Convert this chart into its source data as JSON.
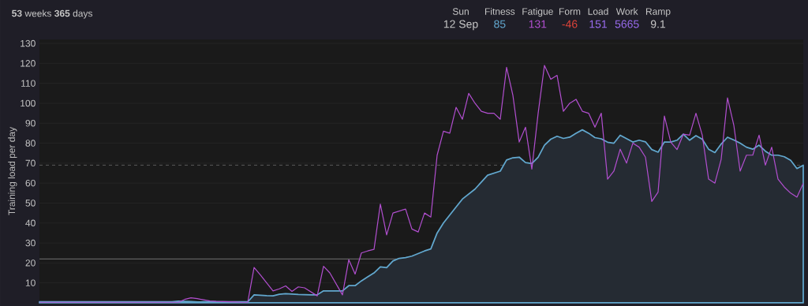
{
  "chart_data": {
    "type": "line",
    "annotations": [
      "**53** weeks **365** days",
      "Sun",
      "12 Sep",
      "Fitness",
      "85",
      "Fatigue",
      "131",
      "Form",
      "-46",
      "Load",
      "151",
      "Work",
      "5665",
      "Ramp",
      "9.1"
    ],
    "ylabel": "Training load per day",
    "categories": [
      null,
      null,
      null,
      null,
      null,
      null,
      null,
      null,
      null,
      null,
      null,
      null,
      null,
      null,
      null,
      null,
      null,
      null,
      null,
      null,
      null,
      null,
      null,
      null,
      null,
      null,
      null,
      null,
      null,
      null,
      null,
      null,
      null,
      null,
      null,
      null,
      null,
      null,
      null,
      null,
      null,
      null,
      null,
      null,
      null,
      null,
      null,
      null,
      null,
      null,
      null,
      null,
      null,
      null,
      null,
      null,
      null,
      null,
      null,
      null,
      null,
      null,
      null,
      null,
      null,
      null,
      null,
      null,
      null,
      null,
      null,
      null,
      null,
      null,
      null,
      null,
      null,
      null,
      null,
      null,
      null,
      null,
      null,
      null,
      null,
      null,
      null,
      null,
      null,
      null,
      null,
      null,
      null,
      null,
      null,
      null,
      null,
      null,
      null,
      null,
      null,
      null,
      null,
      null,
      null,
      null,
      null,
      null,
      null,
      null,
      null,
      null,
      null,
      null,
      null,
      null,
      null,
      null,
      null,
      null,
      null,
      null
    ],
    "ylim": [
      0,
      132
    ],
    "yticks": [
      10,
      20,
      30,
      40,
      50,
      60,
      70,
      80,
      90,
      100,
      110,
      120,
      130
    ],
    "grid": "y",
    "ref_lines": [
      {
        "axis": "y",
        "value": 69,
        "color": "#6a6a6a",
        "line_style": "dashed"
      },
      {
        "axis": "y",
        "value": 22,
        "color": "#8a8a8a",
        "line_style": "solid"
      }
    ],
    "series": [
      {
        "type": "area",
        "color": "#62a8cf",
        "values": [
          0.5,
          0.5,
          0.5,
          0.5,
          0.5,
          0.5,
          0.5,
          0.5,
          0.5,
          0.5,
          0.5,
          0.5,
          0.5,
          0.5,
          0.5,
          0.5,
          0.5,
          0.5,
          0.5,
          0.5,
          0.5,
          0.5,
          0.8,
          0.7,
          0.6,
          0.4,
          0.5,
          0.5,
          0.5,
          0.5,
          0.5,
          0.5,
          0.5,
          0.5,
          4,
          3.8,
          3.6,
          3.5,
          4.3,
          4.6,
          4.4,
          4.2,
          4.1,
          4,
          4,
          6,
          6,
          6,
          6,
          8.6,
          8.6,
          11,
          13,
          15,
          18,
          17.6,
          21,
          22.3,
          22.7,
          23.4,
          24.7,
          26,
          27,
          35,
          40,
          44,
          48,
          52,
          54.5,
          57,
          60.5,
          64,
          65,
          66,
          71.6,
          72.7,
          73,
          70.3,
          69.8,
          73,
          79,
          82,
          83.5,
          82.4,
          83,
          85,
          86.7,
          85,
          82.8,
          82.2,
          80.5,
          80,
          84,
          82.3,
          80.6,
          81.5,
          80.7,
          76.8,
          75.5,
          80.6,
          80.6,
          81.5,
          84.5,
          81.5,
          83.8,
          82,
          77,
          75.3,
          79.6,
          83,
          81.6,
          80,
          78,
          77,
          79,
          76,
          74,
          74,
          73.2,
          71.4,
          67.3,
          69
        ]
      },
      {
        "type": "line",
        "color": "#b24fd0",
        "values": [
          0.3,
          0.3,
          0.3,
          0.3,
          0.3,
          0.3,
          0.3,
          0.3,
          0.3,
          0.3,
          0.3,
          0.3,
          0.3,
          0.3,
          0.3,
          0.3,
          0.3,
          0.3,
          0.3,
          0.3,
          0.3,
          0.3,
          0.3,
          1.7,
          2.5,
          2.1,
          1.5,
          0.9,
          0.7,
          0.6,
          0.5,
          0.4,
          0.3,
          0.3,
          17.7,
          14,
          10,
          6,
          7,
          8.5,
          5.7,
          8,
          7.5,
          5.5,
          3.5,
          18.3,
          15,
          9.5,
          4,
          21.6,
          14.4,
          25,
          26,
          26.8,
          49.5,
          34,
          45,
          46,
          47,
          37,
          35.5,
          45,
          43,
          74,
          86,
          85,
          98,
          92,
          105,
          100,
          96,
          95,
          95,
          92,
          118,
          104,
          80.6,
          88,
          67,
          95,
          119,
          112,
          114,
          96,
          100,
          102,
          96,
          95,
          88,
          95,
          62,
          66,
          77,
          70,
          80,
          78,
          73,
          50.8,
          55.5,
          93.6,
          80.6,
          76.8,
          84.5,
          84,
          95,
          84,
          62,
          60,
          72,
          102.7,
          89,
          66,
          74,
          74,
          84,
          69,
          78,
          62,
          58,
          55,
          53,
          59.9
        ]
      }
    ]
  }
}
